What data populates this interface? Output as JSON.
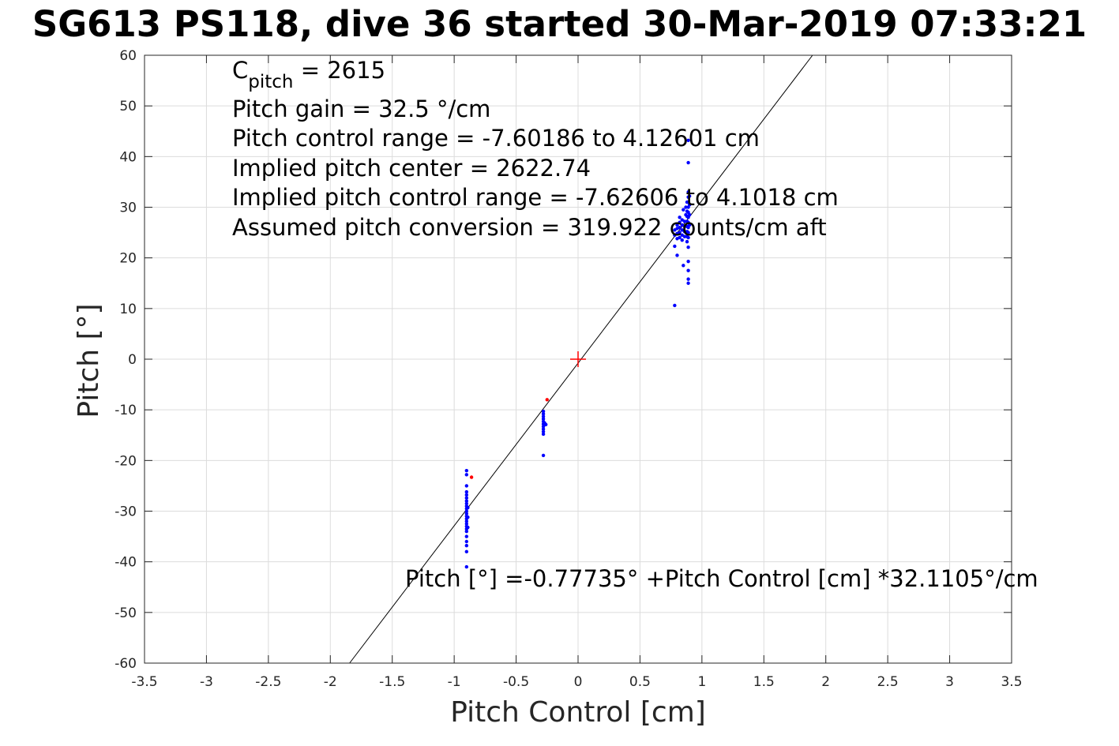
{
  "title": "SG613 PS118, dive 36 started 30-Mar-2019 07:33:21",
  "chart_data": {
    "type": "scatter",
    "title": "SG613 PS118, dive 36 started 30-Mar-2019 07:33:21",
    "xlabel": "Pitch Control [cm]",
    "ylabel": "Pitch [°]",
    "xlim": [
      -3.5,
      3.5
    ],
    "ylim": [
      -60,
      60
    ],
    "grid": true,
    "xticks": [
      -3.5,
      -3,
      -2.5,
      -2,
      -1.5,
      -1,
      -0.5,
      0,
      0.5,
      1,
      1.5,
      2,
      2.5,
      3,
      3.5
    ],
    "xtick_labels": [
      "-3.5",
      "-3",
      "-2.5",
      "-2",
      "-1.5",
      "-1",
      "-0.5",
      "0",
      "0.5",
      "1",
      "1.5",
      "2",
      "2.5",
      "3",
      "3.5"
    ],
    "yticks": [
      -60,
      -50,
      -40,
      -30,
      -20,
      -10,
      0,
      10,
      20,
      30,
      40,
      50,
      60
    ],
    "ytick_labels": [
      "-60",
      "-50",
      "-40",
      "-30",
      "-20",
      "-10",
      "0",
      "10",
      "20",
      "30",
      "40",
      "50",
      "60"
    ],
    "annotations": {
      "c_pitch_main": "C",
      "c_pitch_sub": "pitch",
      "c_pitch_value": " = 2615",
      "lines": [
        "Pitch gain = 32.5 °/cm",
        "Pitch control range = -7.60186 to 4.12601 cm",
        "Implied pitch center = 2622.74",
        "Implied pitch control range = -7.62606 to 4.1018 cm",
        "Assumed pitch conversion = 319.922 counts/cm aft"
      ],
      "fit_equation": "Pitch [°] =-0.77735° +Pitch Control [cm] *32.1105°/cm"
    },
    "fit_line": {
      "intercept": -0.77735,
      "slope": 32.1105,
      "color": "#000000"
    },
    "center_marker": {
      "x": 0,
      "y": 0,
      "color": "#ff0000"
    },
    "series": [
      {
        "color": "#0000ff",
        "points": [
          [
            -0.9,
            -22
          ],
          [
            -0.9,
            -22.8
          ],
          [
            -0.9,
            -25
          ],
          [
            -0.9,
            -26.2
          ],
          [
            -0.9,
            -26.8
          ],
          [
            -0.9,
            -27.4
          ],
          [
            -0.9,
            -28
          ],
          [
            -0.9,
            -28.5
          ],
          [
            -0.9,
            -29
          ],
          [
            -0.9,
            -29.5
          ],
          [
            -0.9,
            -30
          ],
          [
            -0.9,
            -30.5
          ],
          [
            -0.9,
            -31
          ],
          [
            -0.9,
            -31.5
          ],
          [
            -0.9,
            -32
          ],
          [
            -0.9,
            -32.5
          ],
          [
            -0.9,
            -33
          ],
          [
            -0.9,
            -33.5
          ],
          [
            -0.9,
            -34
          ],
          [
            -0.9,
            -35
          ],
          [
            -0.9,
            -36
          ],
          [
            -0.9,
            -36.8
          ],
          [
            -0.9,
            -38
          ],
          [
            -0.9,
            -41
          ],
          [
            -0.89,
            -29.3
          ],
          [
            -0.89,
            -31.2
          ],
          [
            -0.89,
            -33.2
          ],
          [
            -0.28,
            -10.3
          ],
          [
            -0.28,
            -10.8
          ],
          [
            -0.28,
            -11.3
          ],
          [
            -0.28,
            -11.8
          ],
          [
            -0.28,
            -12.3
          ],
          [
            -0.28,
            -12.8
          ],
          [
            -0.28,
            -13.3
          ],
          [
            -0.28,
            -13.8
          ],
          [
            -0.28,
            -14.3
          ],
          [
            -0.28,
            -14.8
          ],
          [
            -0.28,
            -19
          ],
          [
            -0.27,
            -12.6
          ],
          [
            -0.26,
            -12.9
          ],
          [
            0.78,
            10.6
          ],
          [
            0.78,
            22.3
          ],
          [
            0.78,
            24.5
          ],
          [
            0.78,
            25.5
          ],
          [
            0.8,
            20.5
          ],
          [
            0.8,
            23.8
          ],
          [
            0.8,
            24.8
          ],
          [
            0.8,
            25.8
          ],
          [
            0.8,
            26.5
          ],
          [
            0.82,
            24
          ],
          [
            0.82,
            25
          ],
          [
            0.82,
            26
          ],
          [
            0.82,
            27
          ],
          [
            0.82,
            28
          ],
          [
            0.84,
            23.5
          ],
          [
            0.84,
            24.5
          ],
          [
            0.84,
            25.5
          ],
          [
            0.84,
            26.5
          ],
          [
            0.84,
            27.5
          ],
          [
            0.85,
            18.5
          ],
          [
            0.85,
            29.5
          ],
          [
            0.86,
            24.2
          ],
          [
            0.86,
            25.2
          ],
          [
            0.86,
            26.2
          ],
          [
            0.86,
            27.2
          ],
          [
            0.87,
            28.5
          ],
          [
            0.87,
            30
          ],
          [
            0.88,
            23.2
          ],
          [
            0.88,
            24.2
          ],
          [
            0.88,
            25.2
          ],
          [
            0.88,
            26.2
          ],
          [
            0.88,
            27.2
          ],
          [
            0.88,
            28.2
          ],
          [
            0.88,
            29.2
          ],
          [
            0.88,
            31
          ],
          [
            0.89,
            15
          ],
          [
            0.89,
            15.8
          ],
          [
            0.89,
            17.5
          ],
          [
            0.89,
            19.3
          ],
          [
            0.89,
            22.1
          ],
          [
            0.89,
            24
          ],
          [
            0.89,
            25
          ],
          [
            0.89,
            26
          ],
          [
            0.89,
            27
          ],
          [
            0.89,
            28
          ],
          [
            0.89,
            29
          ],
          [
            0.89,
            30
          ],
          [
            0.89,
            31
          ],
          [
            0.89,
            32
          ],
          [
            0.89,
            33
          ],
          [
            0.89,
            38.8
          ],
          [
            0.89,
            43.2
          ],
          [
            0.9,
            26.5
          ],
          [
            0.9,
            28.5
          ],
          [
            0.9,
            30.5
          ],
          [
            0.9,
            32.2
          ]
        ]
      },
      {
        "color": "#ff0000",
        "points": [
          [
            -0.86,
            -23.3
          ],
          [
            -0.25,
            -8
          ]
        ]
      }
    ]
  }
}
